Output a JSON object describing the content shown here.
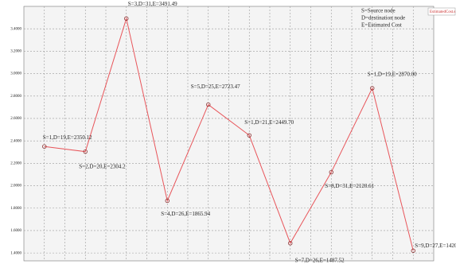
{
  "chart_data": {
    "type": "line",
    "legend_notes": [
      "S=Source node",
      "D=destination node",
      "E=Estimated Cost"
    ],
    "categories": [
      null,
      null,
      null,
      null,
      null,
      null,
      null,
      null,
      null,
      null
    ],
    "series": [
      {
        "name": "EstimatedCost.s",
        "color": "#e8555a",
        "values": [
          2350.12,
          2304.2,
          3491.49,
          1865.94,
          2723.47,
          2449.7,
          1487.52,
          2120.61,
          2870.0,
          1420.28
        ]
      }
    ],
    "annotations": [
      "S=1,D=19,E=2350.12",
      "S=2,D=20,E=2304.2",
      "S=3,D=31,E=3491.49",
      "S=4,D=26,E=1865.94",
      "S=5,D=25,E=2723.47",
      "S=1,D=21,E=2449.70",
      "S=7,D=26,E=1487.52",
      "S=8,D=31,E=2120.61",
      "S=1,D=19,E=2870.00",
      "S=9,D=27,E=1420.28"
    ],
    "ylim": [
      1330,
      3600
    ],
    "yticks": [
      {
        "value": 1400,
        "label": "1.4000"
      },
      {
        "value": 1600,
        "label": "1.6000"
      },
      {
        "value": 1800,
        "label": "1.8000"
      },
      {
        "value": 2000,
        "label": "2.0000"
      },
      {
        "value": 2200,
        "label": "2.2000"
      },
      {
        "value": 2400,
        "label": "2.4000"
      },
      {
        "value": 2600,
        "label": "2.6000"
      },
      {
        "value": 2800,
        "label": "2.8000"
      },
      {
        "value": 3000,
        "label": "3.0000"
      },
      {
        "value": 3200,
        "label": "3.2000"
      },
      {
        "value": 3400,
        "label": "3.4000"
      }
    ],
    "grid": true
  }
}
